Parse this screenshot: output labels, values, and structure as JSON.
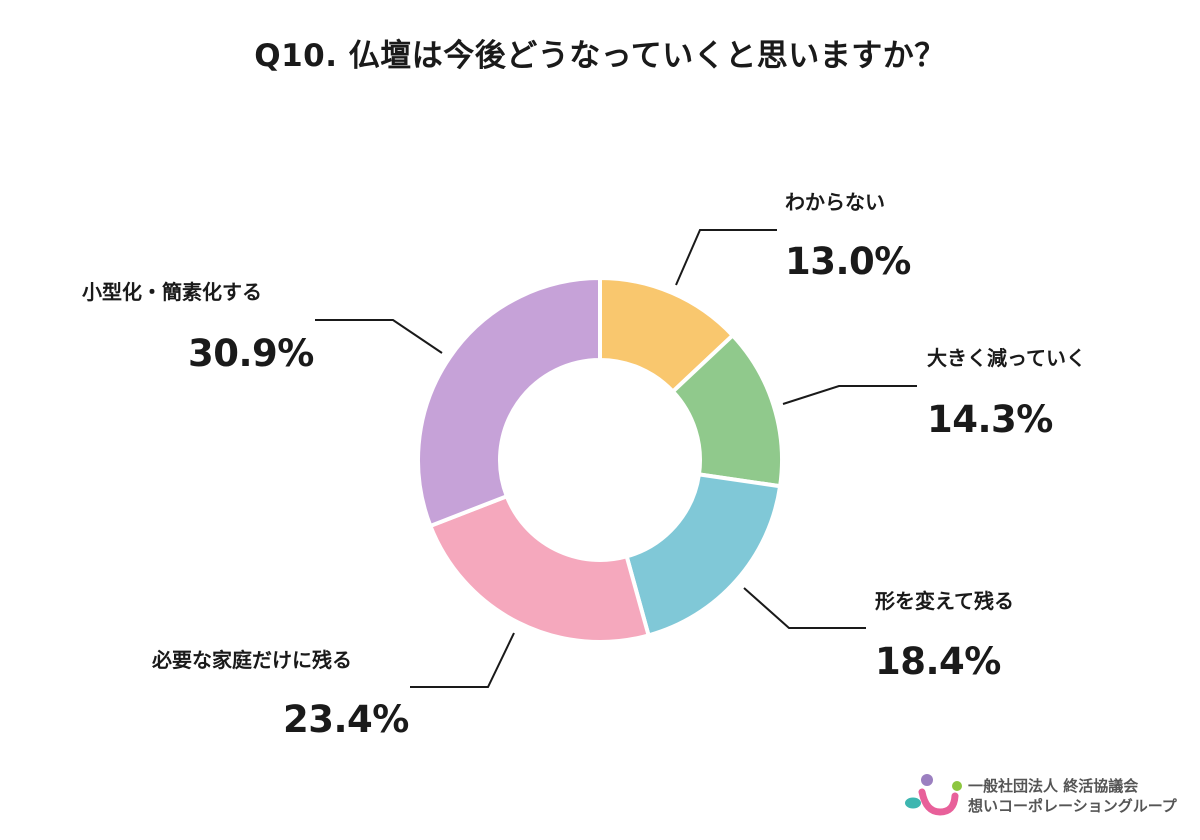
{
  "title": "Q10. 仏壇は今後どうなっていくと思いますか？",
  "chart_data": {
    "type": "pie",
    "variant": "donut",
    "title": "Q10. 仏壇は今後どうなっていくと思いますか？",
    "start_angle": "12 o'clock",
    "direction": "clockwise",
    "categories": [
      "わからない",
      "大きく減っていく",
      "形を変えて残る",
      "必要な家庭だけに残る",
      "小型化・簡素化する"
    ],
    "values": [
      13.0,
      14.3,
      18.4,
      23.4,
      30.9
    ],
    "unit": "%",
    "colors": [
      "#F9C76E",
      "#90C98C",
      "#80C8D7",
      "#F5A8BD",
      "#C6A2D8"
    ],
    "labels_display": [
      "13.0%",
      "14.3%",
      "18.4%",
      "23.4%",
      "30.9%"
    ]
  },
  "slices": [
    {
      "label": "わからない",
      "value_text": "13.0%"
    },
    {
      "label": "大きく減っていく",
      "value_text": "14.3%"
    },
    {
      "label": "形を変えて残る",
      "value_text": "18.4%"
    },
    {
      "label": "必要な家庭だけに残る",
      "value_text": "23.4%"
    },
    {
      "label": "小型化・簡素化する",
      "value_text": "30.9%"
    }
  ],
  "logo": {
    "line1": "一般社団法人 終活協議会",
    "line2": "想いコーポレーショングループ",
    "colors": {
      "purple": "#9B7FC0",
      "green": "#8CC63F",
      "teal": "#3DB6B0",
      "pink": "#E8609A"
    }
  }
}
